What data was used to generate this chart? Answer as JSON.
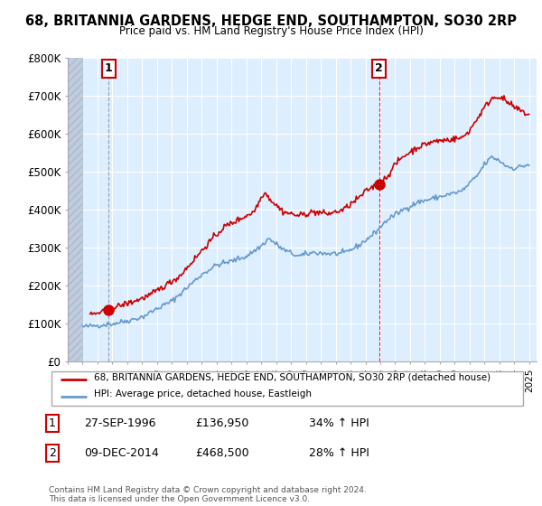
{
  "title": "68, BRITANNIA GARDENS, HEDGE END, SOUTHAMPTON, SO30 2RP",
  "subtitle": "Price paid vs. HM Land Registry's House Price Index (HPI)",
  "background_color": "#ffffff",
  "plot_bg_color": "#ddeeff",
  "grid_color": "#ffffff",
  "hpi_color": "#6699cc",
  "price_color": "#cc0000",
  "sale_marker_color": "#cc0000",
  "hatch_color": "#c0cce0",
  "ylim_max": 800000,
  "ylim_min": 0,
  "xstart": 1994.0,
  "xend": 2025.5,
  "sale1_t": 1996.75,
  "sale1_price": 136950,
  "sale2_t": 2014.917,
  "sale2_price": 468500,
  "legend_line1": "68, BRITANNIA GARDENS, HEDGE END, SOUTHAMPTON, SO30 2RP (detached house)",
  "legend_line2": "HPI: Average price, detached house, Eastleigh",
  "footer": "Contains HM Land Registry data © Crown copyright and database right 2024.\nThis data is licensed under the Open Government Licence v3.0.",
  "ann1_date": "27-SEP-1996",
  "ann1_price": "£136,950",
  "ann1_hpi": "34% ↑ HPI",
  "ann2_date": "09-DEC-2014",
  "ann2_price": "£468,500",
  "ann2_hpi": "28% ↑ HPI"
}
